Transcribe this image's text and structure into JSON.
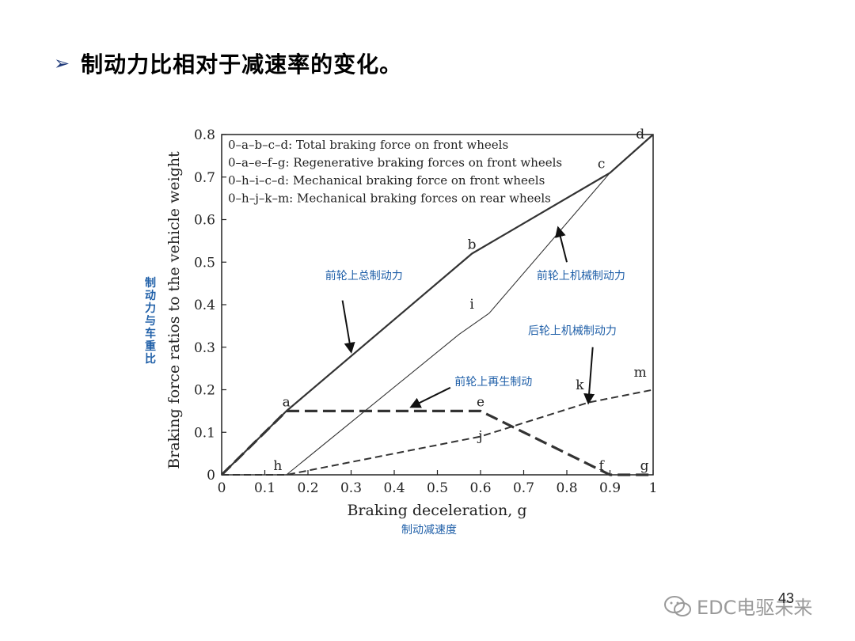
{
  "heading": {
    "bullet": "➢",
    "text": "制动力比相对于减速率的变化。"
  },
  "watermark": {
    "icon": "wechat-icon",
    "text": "EDC电驱未来"
  },
  "page_number": "43",
  "colors": {
    "annotation_blue": "#1f5fa8",
    "curve": "#333333"
  },
  "chart_data": {
    "type": "line",
    "xlabel": "Braking deceleration, g",
    "xlabel_cn": "制动减速度",
    "ylabel": "Braking force ratios to the vehicle weight",
    "ylabel_cn": "制动力与车重比",
    "xlim": [
      0,
      1
    ],
    "ylim": [
      0,
      0.8
    ],
    "x_ticks": [
      "0",
      "0.1",
      "0.2",
      "0.3",
      "0.4",
      "0.5",
      "0.6",
      "0.7",
      "0.8",
      "0.9",
      "1"
    ],
    "y_ticks": [
      "0",
      "0.1",
      "0.2",
      "0.3",
      "0.4",
      "0.5",
      "0.6",
      "0.7",
      "0.8"
    ],
    "legend_position": "top-left",
    "legend": [
      "0–a–b–c–d: Total braking force on front wheels",
      "0–a–e–f–g: Regenerative braking forces on front wheels",
      "0–h–i–c–d: Mechanical braking force on front wheels",
      "0–h–j–k–m: Mechanical braking forces on rear wheels"
    ],
    "series": [
      {
        "style": "solid-thick",
        "points": [
          [
            0,
            0
          ],
          [
            0.15,
            0.15
          ],
          [
            0.58,
            0.52
          ],
          [
            0.9,
            0.71
          ],
          [
            1.0,
            0.8
          ]
        ]
      },
      {
        "style": "dashed-thick",
        "points": [
          [
            0,
            0
          ],
          [
            0.15,
            0.15
          ],
          [
            0.6,
            0.15
          ],
          [
            0.9,
            0
          ],
          [
            1.0,
            0
          ]
        ]
      },
      {
        "style": "solid-thin",
        "points": [
          [
            0,
            0
          ],
          [
            0.15,
            0
          ],
          [
            0.55,
            0.33
          ],
          [
            0.62,
            0.38
          ],
          [
            0.9,
            0.71
          ],
          [
            1.0,
            0.8
          ]
        ]
      },
      {
        "style": "dashed-thin",
        "points": [
          [
            0,
            0
          ],
          [
            0.15,
            0
          ],
          [
            0.6,
            0.09
          ],
          [
            0.85,
            0.17
          ],
          [
            1.0,
            0.2
          ]
        ]
      }
    ],
    "point_labels": [
      {
        "text": "a",
        "x": 0.15,
        "y": 0.15
      },
      {
        "text": "b",
        "x": 0.58,
        "y": 0.52
      },
      {
        "text": "c",
        "x": 0.88,
        "y": 0.71
      },
      {
        "text": "d",
        "x": 0.97,
        "y": 0.78
      },
      {
        "text": "e",
        "x": 0.6,
        "y": 0.15
      },
      {
        "text": "f",
        "x": 0.88,
        "y": 0.0
      },
      {
        "text": "g",
        "x": 0.98,
        "y": 0.0
      },
      {
        "text": "h",
        "x": 0.13,
        "y": 0.0
      },
      {
        "text": "i",
        "x": 0.58,
        "y": 0.38
      },
      {
        "text": "j",
        "x": 0.6,
        "y": 0.07
      },
      {
        "text": "k",
        "x": 0.83,
        "y": 0.19
      },
      {
        "text": "m",
        "x": 0.97,
        "y": 0.22
      }
    ],
    "annotations": [
      {
        "text": "前轮上总制动力",
        "x": 0.24,
        "y": 0.46,
        "arrow_from": [
          0.28,
          0.41
        ],
        "arrow_to": [
          0.3,
          0.29
        ]
      },
      {
        "text": "前轮上机械制动力",
        "x": 0.73,
        "y": 0.46,
        "arrow_from": [
          0.8,
          0.5
        ],
        "arrow_to": [
          0.78,
          0.58
        ]
      },
      {
        "text": "后轮上机械制动力",
        "x": 0.71,
        "y": 0.33,
        "arrow_from": [
          0.86,
          0.3
        ],
        "arrow_to": [
          0.85,
          0.17
        ]
      },
      {
        "text": "前轮上再生制动",
        "x": 0.54,
        "y": 0.21,
        "arrow_from": [
          0.53,
          0.205
        ],
        "arrow_to": [
          0.44,
          0.16
        ]
      }
    ]
  }
}
